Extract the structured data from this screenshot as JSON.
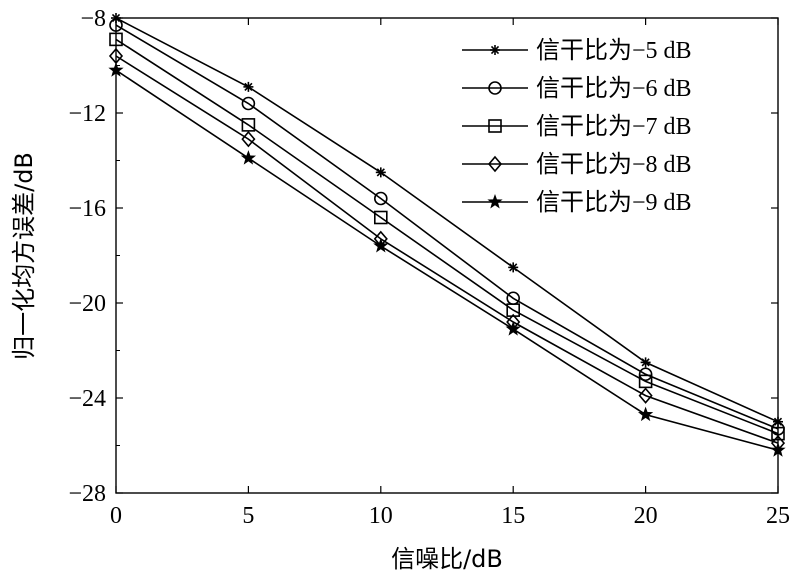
{
  "chart_data": {
    "type": "line",
    "xlabel": "信噪比/dB",
    "ylabel": "归一化均方误差/dB",
    "xlim": [
      0,
      25
    ],
    "ylim": [
      -28,
      -8
    ],
    "xticks": [
      0,
      5,
      10,
      15,
      20,
      25
    ],
    "yticks": [
      -8,
      -12,
      -16,
      -20,
      -24,
      -28
    ],
    "xtick_labels": [
      "0",
      "5",
      "10",
      "15",
      "20",
      "25"
    ],
    "ytick_labels": [
      "−8",
      "−12",
      "−16",
      "−20",
      "−24",
      "−28"
    ],
    "grid": false,
    "legend_position": "top-right",
    "x": [
      0,
      5,
      10,
      15,
      20,
      25
    ],
    "series": [
      {
        "name": "信干比为−5 dB",
        "marker": "asterisk",
        "values": [
          -8.0,
          -10.9,
          -14.5,
          -18.5,
          -22.5,
          -25.0
        ]
      },
      {
        "name": "信干比为−6 dB",
        "marker": "circle",
        "values": [
          -8.3,
          -11.6,
          -15.6,
          -19.8,
          -23.0,
          -25.3
        ]
      },
      {
        "name": "信干比为−7 dB",
        "marker": "square",
        "values": [
          -8.9,
          -12.5,
          -16.4,
          -20.3,
          -23.3,
          -25.5
        ]
      },
      {
        "name": "信干比为−8 dB",
        "marker": "diamond",
        "values": [
          -9.6,
          -13.1,
          -17.3,
          -20.8,
          -23.9,
          -25.9
        ]
      },
      {
        "name": "信干比为−9 dB",
        "marker": "star",
        "values": [
          -10.2,
          -13.9,
          -17.6,
          -21.1,
          -24.7,
          -26.2
        ]
      }
    ]
  }
}
